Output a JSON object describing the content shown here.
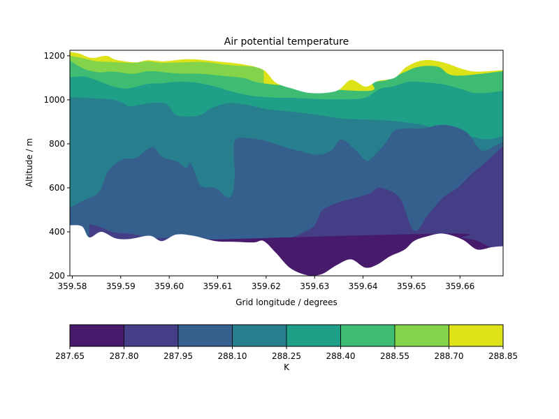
{
  "chart_data": {
    "type": "filled-contour",
    "title": "Air potential temperature",
    "xlabel": "Grid longitude / degrees",
    "ylabel": "Altitude / m",
    "xlim": [
      359.5795,
      359.6689
    ],
    "ylim": [
      200,
      1225
    ],
    "xticks": [
      "359.58",
      "359.59",
      "359.60",
      "359.61",
      "359.62",
      "359.63",
      "359.64",
      "359.65",
      "359.66"
    ],
    "xtick_values": [
      359.58,
      359.59,
      359.6,
      359.61,
      359.62,
      359.63,
      359.64,
      359.65,
      359.66
    ],
    "yticks": [
      "200",
      "400",
      "600",
      "800",
      "1000",
      "1200"
    ],
    "ytick_values": [
      200,
      400,
      600,
      800,
      1000,
      1200
    ],
    "colorbar": {
      "label": "K",
      "orientation": "horizontal",
      "boundaries": [
        287.65,
        287.8,
        287.95,
        288.1,
        288.25,
        288.4,
        288.55,
        288.7,
        288.85
      ],
      "tick_labels": [
        "287.65",
        "287.80",
        "287.95",
        "288.10",
        "288.25",
        "288.40",
        "288.55",
        "288.70",
        "288.85"
      ],
      "colors": [
        "#481a6c",
        "#433e85",
        "#355f8d",
        "#277f8e",
        "#1f9f88",
        "#3fbc73",
        "#84d44b",
        "#dde318"
      ]
    },
    "terrain": [
      [
        359.5795,
        430
      ],
      [
        359.582,
        425
      ],
      [
        359.5835,
        375
      ],
      [
        359.586,
        400
      ],
      [
        359.589,
        370
      ],
      [
        359.592,
        368
      ],
      [
        359.596,
        382
      ],
      [
        359.5985,
        358
      ],
      [
        359.6015,
        388
      ],
      [
        359.605,
        382
      ],
      [
        359.6095,
        358
      ],
      [
        359.6135,
        355
      ],
      [
        359.6175,
        352
      ],
      [
        359.6195,
        358
      ],
      [
        359.622,
        305
      ],
      [
        359.625,
        235
      ],
      [
        359.6285,
        203
      ],
      [
        359.6315,
        208
      ],
      [
        359.6345,
        248
      ],
      [
        359.6375,
        275
      ],
      [
        359.6405,
        237
      ],
      [
        359.643,
        252
      ],
      [
        359.6455,
        288
      ],
      [
        359.6485,
        318
      ],
      [
        359.6505,
        358
      ],
      [
        359.653,
        378
      ],
      [
        359.6565,
        392
      ],
      [
        359.6605,
        365
      ],
      [
        359.6635,
        320
      ],
      [
        359.6665,
        330
      ],
      [
        359.6689,
        335
      ]
    ],
    "top_boundary": [
      [
        359.5795,
        1218
      ],
      [
        359.5815,
        1210
      ],
      [
        359.584,
        1190
      ],
      [
        359.587,
        1200
      ],
      [
        359.589,
        1182
      ],
      [
        359.593,
        1170
      ],
      [
        359.5955,
        1180
      ],
      [
        359.599,
        1175
      ],
      [
        359.604,
        1185
      ],
      [
        359.6095,
        1175
      ],
      [
        359.6155,
        1160
      ],
      [
        359.6195,
        1135
      ],
      [
        359.622,
        1078
      ],
      [
        359.6255,
        1050
      ],
      [
        359.6295,
        1030
      ],
      [
        359.6345,
        1040
      ],
      [
        359.6375,
        1090
      ],
      [
        359.6405,
        1060
      ],
      [
        359.643,
        1085
      ],
      [
        359.6465,
        1100
      ],
      [
        359.649,
        1150
      ],
      [
        359.6525,
        1180
      ],
      [
        359.6565,
        1170
      ],
      [
        359.6605,
        1140
      ],
      [
        359.6635,
        1128
      ],
      [
        359.6689,
        1135
      ]
    ],
    "contour_lines": [
      {
        "level": 288.7,
        "points": [
          [
            359.5795,
            1200
          ],
          [
            359.582,
            1190
          ],
          [
            359.585,
            1175
          ],
          [
            359.588,
            1172
          ],
          [
            359.5925,
            1168
          ],
          [
            359.5955,
            1175
          ],
          [
            359.5985,
            1168
          ],
          [
            359.6025,
            1170
          ],
          [
            359.607,
            1172
          ],
          [
            359.6125,
            1158
          ],
          [
            359.6175,
            1150
          ],
          [
            359.6195,
            1135
          ]
        ]
      },
      {
        "level": 288.55,
        "points": [
          [
            359.5795,
            1178
          ],
          [
            359.5825,
            1140
          ],
          [
            359.5855,
            1125
          ],
          [
            359.5885,
            1128
          ],
          [
            359.5925,
            1118
          ],
          [
            359.596,
            1130
          ],
          [
            359.6015,
            1120
          ],
          [
            359.6065,
            1118
          ],
          [
            359.6105,
            1110
          ],
          [
            359.6155,
            1098
          ],
          [
            359.6205,
            1072
          ],
          [
            359.6405,
            1040
          ],
          [
            359.642,
            1078
          ],
          [
            359.645,
            1090
          ],
          [
            359.6485,
            1125
          ],
          [
            359.6515,
            1150
          ],
          [
            359.6555,
            1150
          ],
          [
            359.659,
            1110
          ],
          [
            359.6689,
            1130
          ]
        ]
      },
      {
        "level": 288.4,
        "points": [
          [
            359.5795,
            1102
          ],
          [
            359.5825,
            1105
          ],
          [
            359.5855,
            1085
          ],
          [
            359.5885,
            1060
          ],
          [
            359.5915,
            1052
          ],
          [
            359.5955,
            1072
          ],
          [
            359.5985,
            1075
          ],
          [
            359.6015,
            1082
          ],
          [
            359.6055,
            1078
          ],
          [
            359.6095,
            1060
          ],
          [
            359.6125,
            1040
          ],
          [
            359.6165,
            1020
          ],
          [
            359.6215,
            1010
          ],
          [
            359.6265,
            1008
          ],
          [
            359.6315,
            1003
          ],
          [
            359.6365,
            1002
          ],
          [
            359.6405,
            1010
          ],
          [
            359.6435,
            1050
          ],
          [
            359.646,
            1060
          ],
          [
            359.6495,
            1082
          ],
          [
            359.6525,
            1080
          ],
          [
            359.6565,
            1070
          ],
          [
            359.66,
            1050
          ],
          [
            359.6635,
            1030
          ],
          [
            359.6689,
            1040
          ]
        ]
      },
      {
        "level": 288.25,
        "points": [
          [
            359.5795,
            1012
          ],
          [
            359.5815,
            1010
          ],
          [
            359.5835,
            1008
          ],
          [
            359.5855,
            1005
          ],
          [
            359.5885,
            1000
          ],
          [
            359.5905,
            985
          ],
          [
            359.592,
            970
          ],
          [
            359.596,
            985
          ],
          [
            359.5995,
            980
          ],
          [
            359.6015,
            930
          ],
          [
            359.606,
            928
          ],
          [
            359.609,
            965
          ],
          [
            359.6125,
            985
          ],
          [
            359.6165,
            975
          ],
          [
            359.6195,
            960
          ],
          [
            359.6225,
            952
          ],
          [
            359.6275,
            940
          ],
          [
            359.6325,
            925
          ],
          [
            359.6355,
            915
          ],
          [
            359.6405,
            910
          ],
          [
            359.6455,
            905
          ],
          [
            359.6495,
            895
          ],
          [
            359.6525,
            885
          ],
          [
            359.6555,
            860
          ],
          [
            359.659,
            845
          ],
          [
            359.6625,
            832
          ],
          [
            359.6655,
            820
          ],
          [
            359.6689,
            835
          ]
        ]
      },
      {
        "level": 288.1,
        "points": [
          [
            359.5795,
            510
          ],
          [
            359.5825,
            545
          ],
          [
            359.5855,
            580
          ],
          [
            359.5875,
            680
          ],
          [
            359.5905,
            730
          ],
          [
            359.593,
            735
          ],
          [
            359.5965,
            785
          ],
          [
            359.5985,
            740
          ],
          [
            359.6015,
            720
          ],
          [
            359.6035,
            690
          ],
          [
            359.6045,
            710
          ],
          [
            359.6065,
            610
          ],
          [
            359.6095,
            600
          ],
          [
            359.6125,
            555
          ],
          [
            359.6135,
            640
          ],
          [
            359.6135,
            810
          ],
          [
            359.6165,
            825
          ],
          [
            359.6195,
            815
          ],
          [
            359.6225,
            795
          ],
          [
            359.6245,
            780
          ],
          [
            359.6265,
            770
          ],
          [
            359.6305,
            750
          ],
          [
            359.6335,
            770
          ],
          [
            359.6355,
            820
          ],
          [
            359.6385,
            770
          ],
          [
            359.6405,
            725
          ],
          [
            359.6415,
            730
          ],
          [
            359.6445,
            800
          ],
          [
            359.6465,
            860
          ],
          [
            359.6495,
            870
          ],
          [
            359.6525,
            870
          ],
          [
            359.6555,
            885
          ],
          [
            359.6585,
            880
          ],
          [
            359.6615,
            850
          ],
          [
            359.6645,
            770
          ],
          [
            359.6675,
            795
          ],
          [
            359.6689,
            810
          ]
        ]
      },
      {
        "level": 287.95,
        "points": [
          [
            359.5835,
            435
          ],
          [
            359.586,
            420
          ],
          [
            359.5885,
            398
          ],
          [
            359.5925,
            390
          ],
          [
            359.596,
            375
          ],
          [
            359.5985,
            372
          ],
          [
            359.6015,
            378
          ],
          [
            359.6055,
            372
          ],
          [
            359.6095,
            365
          ],
          [
            359.6135,
            360
          ],
          [
            359.6175,
            350
          ],
          [
            359.6195,
            370
          ],
          [
            359.6235,
            362
          ],
          [
            359.6295,
            420
          ],
          [
            359.6315,
            495
          ],
          [
            359.6345,
            530
          ],
          [
            359.6385,
            555
          ],
          [
            359.6415,
            575
          ],
          [
            359.6435,
            600
          ],
          [
            359.6475,
            555
          ],
          [
            359.6505,
            405
          ],
          [
            359.6535,
            480
          ],
          [
            359.6565,
            555
          ],
          [
            359.6595,
            600
          ],
          [
            359.6625,
            665
          ],
          [
            359.6655,
            720
          ],
          [
            359.6689,
            790
          ]
        ]
      },
      {
        "level": 287.8,
        "points": [
          [
            359.5945,
            360
          ],
          [
            359.5975,
            368
          ],
          [
            359.5995,
            360
          ],
          [
            359.6565,
            392
          ],
          [
            359.6605,
            373
          ],
          [
            359.6635,
            360
          ],
          [
            359.6665,
            330
          ],
          [
            359.6689,
            335
          ]
        ]
      }
    ]
  }
}
